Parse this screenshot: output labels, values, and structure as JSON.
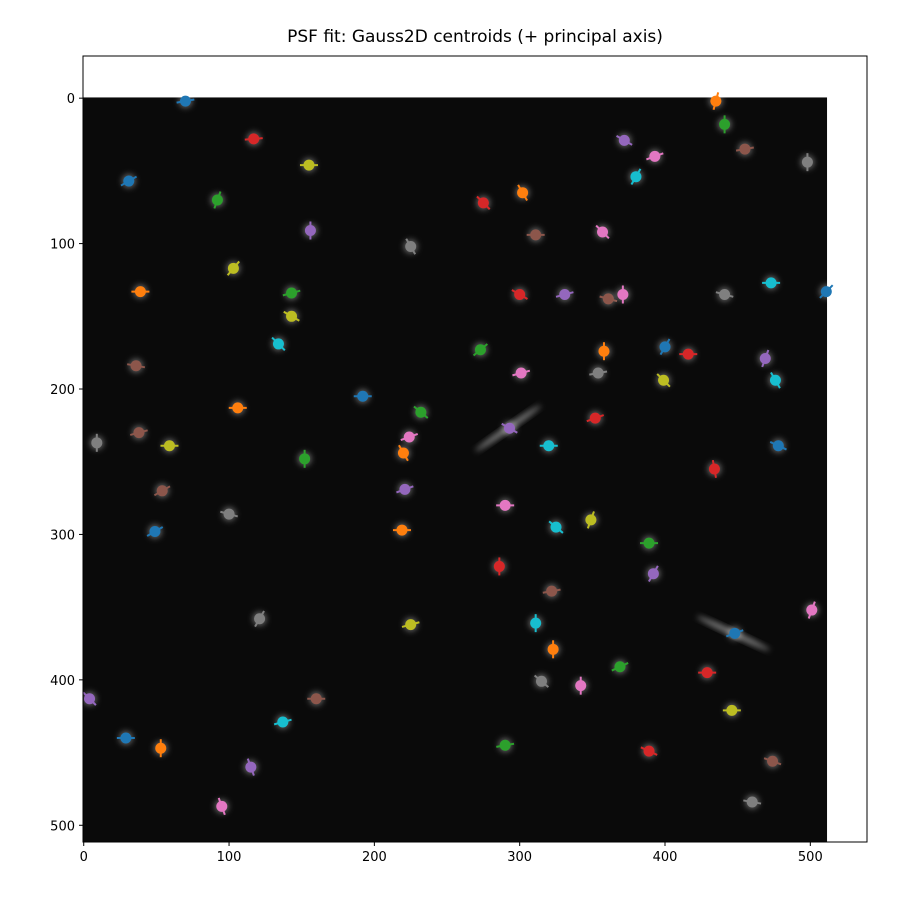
{
  "chart_data": {
    "type": "scatter",
    "title": "PSF fit: Gauss2D centroids (+ principal axis)",
    "xlabel": "",
    "ylabel": "",
    "xlim": [
      -0.5,
      539
    ],
    "ylim": [
      511.5,
      -29
    ],
    "x_ticks": [
      "0",
      "100",
      "200",
      "300",
      "400",
      "500"
    ],
    "y_ticks": [
      "0",
      "100",
      "200",
      "300",
      "400",
      "500"
    ],
    "grid": false,
    "image_background": "#0a0a0a",
    "image_extent": [
      511.5,
      511.5
    ],
    "colors": [
      "#1f77b4",
      "#ff7f0e",
      "#2ca02c",
      "#d62728",
      "#9467bd",
      "#8c564b",
      "#e377c2",
      "#7f7f7f",
      "#bcbd22",
      "#17becf"
    ],
    "streaks": [
      {
        "x": 292,
        "y": 227,
        "angle": -35
      },
      {
        "x": 447,
        "y": 368,
        "angle": 25
      }
    ],
    "points": [
      {
        "x": 70,
        "y": 2,
        "angle": 10
      },
      {
        "x": 435,
        "y": 2,
        "angle": 75
      },
      {
        "x": 441,
        "y": 18,
        "angle": 90
      },
      {
        "x": 117,
        "y": 28,
        "angle": 5
      },
      {
        "x": 372,
        "y": 29,
        "angle": -30
      },
      {
        "x": 455,
        "y": 35,
        "angle": 10
      },
      {
        "x": 393,
        "y": 40,
        "angle": 20
      },
      {
        "x": 498,
        "y": 44,
        "angle": 90
      },
      {
        "x": 155,
        "y": 46,
        "angle": 0
      },
      {
        "x": 380,
        "y": 54,
        "angle": 60
      },
      {
        "x": 31,
        "y": 57,
        "angle": 30
      },
      {
        "x": 302,
        "y": 65,
        "angle": -60
      },
      {
        "x": 92,
        "y": 70,
        "angle": 70
      },
      {
        "x": 275,
        "y": 72,
        "angle": -45
      },
      {
        "x": 156,
        "y": 91,
        "angle": 90
      },
      {
        "x": 311,
        "y": 94,
        "angle": 0
      },
      {
        "x": 357,
        "y": 92,
        "angle": -45
      },
      {
        "x": 225,
        "y": 102,
        "angle": -60
      },
      {
        "x": 103,
        "y": 117,
        "angle": 50
      },
      {
        "x": 473,
        "y": 127,
        "angle": 0
      },
      {
        "x": 511,
        "y": 133,
        "angle": 45
      },
      {
        "x": 39,
        "y": 133,
        "angle": 0
      },
      {
        "x": 143,
        "y": 134,
        "angle": 15
      },
      {
        "x": 300,
        "y": 135,
        "angle": -30
      },
      {
        "x": 331,
        "y": 135,
        "angle": 15
      },
      {
        "x": 361,
        "y": 138,
        "angle": -15
      },
      {
        "x": 371,
        "y": 135,
        "angle": 90
      },
      {
        "x": 441,
        "y": 135,
        "angle": -15
      },
      {
        "x": 143,
        "y": 150,
        "angle": -30
      },
      {
        "x": 134,
        "y": 169,
        "angle": -45
      },
      {
        "x": 400,
        "y": 171,
        "angle": 60
      },
      {
        "x": 358,
        "y": 174,
        "angle": 90
      },
      {
        "x": 273,
        "y": 173,
        "angle": 40
      },
      {
        "x": 416,
        "y": 176,
        "angle": 0
      },
      {
        "x": 469,
        "y": 179,
        "angle": 70
      },
      {
        "x": 36,
        "y": 184,
        "angle": -10
      },
      {
        "x": 301,
        "y": 189,
        "angle": 15
      },
      {
        "x": 354,
        "y": 189,
        "angle": 10
      },
      {
        "x": 399,
        "y": 194,
        "angle": -45
      },
      {
        "x": 476,
        "y": 194,
        "angle": -60
      },
      {
        "x": 192,
        "y": 205,
        "angle": 0
      },
      {
        "x": 106,
        "y": 213,
        "angle": 0
      },
      {
        "x": 232,
        "y": 216,
        "angle": -40
      },
      {
        "x": 352,
        "y": 220,
        "angle": 20
      },
      {
        "x": 293,
        "y": 227,
        "angle": -30
      },
      {
        "x": 38,
        "y": 230,
        "angle": 15
      },
      {
        "x": 224,
        "y": 233,
        "angle": 20
      },
      {
        "x": 9,
        "y": 237,
        "angle": 90
      },
      {
        "x": 59,
        "y": 239,
        "angle": 0
      },
      {
        "x": 320,
        "y": 239,
        "angle": 0
      },
      {
        "x": 478,
        "y": 239,
        "angle": -25
      },
      {
        "x": 220,
        "y": 244,
        "angle": -60
      },
      {
        "x": 152,
        "y": 248,
        "angle": 90
      },
      {
        "x": 434,
        "y": 255,
        "angle": -80
      },
      {
        "x": 221,
        "y": 269,
        "angle": 20
      },
      {
        "x": 54,
        "y": 270,
        "angle": 30
      },
      {
        "x": 290,
        "y": 280,
        "angle": 0
      },
      {
        "x": 100,
        "y": 286,
        "angle": -15
      },
      {
        "x": 349,
        "y": 290,
        "angle": 70
      },
      {
        "x": 325,
        "y": 295,
        "angle": -40
      },
      {
        "x": 49,
        "y": 298,
        "angle": 30
      },
      {
        "x": 219,
        "y": 297,
        "angle": 0
      },
      {
        "x": 389,
        "y": 306,
        "angle": 0
      },
      {
        "x": 286,
        "y": 322,
        "angle": 90
      },
      {
        "x": 392,
        "y": 327,
        "angle": 60
      },
      {
        "x": 322,
        "y": 339,
        "angle": 10
      },
      {
        "x": 501,
        "y": 352,
        "angle": 70
      },
      {
        "x": 121,
        "y": 358,
        "angle": 60
      },
      {
        "x": 225,
        "y": 362,
        "angle": 15
      },
      {
        "x": 311,
        "y": 361,
        "angle": 90
      },
      {
        "x": 448,
        "y": 368,
        "angle": 20
      },
      {
        "x": 323,
        "y": 379,
        "angle": 90
      },
      {
        "x": 369,
        "y": 391,
        "angle": 25
      },
      {
        "x": 429,
        "y": 395,
        "angle": 0
      },
      {
        "x": 4,
        "y": 413,
        "angle": -45
      },
      {
        "x": 160,
        "y": 413,
        "angle": 0
      },
      {
        "x": 342,
        "y": 404,
        "angle": 90
      },
      {
        "x": 315,
        "y": 401,
        "angle": -40
      },
      {
        "x": 446,
        "y": 421,
        "angle": 0
      },
      {
        "x": 137,
        "y": 429,
        "angle": 15
      },
      {
        "x": 29,
        "y": 440,
        "angle": 0
      },
      {
        "x": 53,
        "y": 447,
        "angle": 90
      },
      {
        "x": 290,
        "y": 445,
        "angle": 10
      },
      {
        "x": 389,
        "y": 449,
        "angle": -25
      },
      {
        "x": 115,
        "y": 460,
        "angle": -70
      },
      {
        "x": 474,
        "y": 456,
        "angle": -20
      },
      {
        "x": 95,
        "y": 487,
        "angle": -70
      },
      {
        "x": 460,
        "y": 484,
        "angle": -10
      }
    ]
  }
}
